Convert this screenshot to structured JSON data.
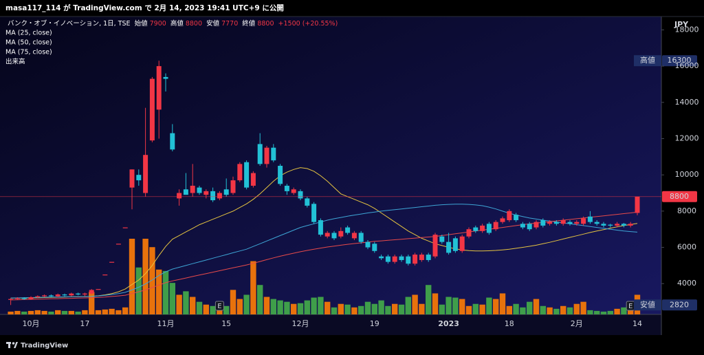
{
  "header": {
    "text": "masa117_114 が TradingView.com で 2月 14, 2023 19:41 UTC+9 に公開"
  },
  "chart_data": {
    "type": "candlestick",
    "symbol": "バンク・オブ・イノベーション, 1日, TSE",
    "legend": {
      "open_label": "始値",
      "open": 7900,
      "high_label": "高値",
      "high": 8800,
      "low_label": "安値",
      "low": 7770,
      "close_label": "終値",
      "close": 8800,
      "change": "+1500 (+20.55%)"
    },
    "categories": [
      null,
      null,
      null,
      "10月",
      null,
      null,
      null,
      null,
      null,
      null,
      null,
      "17",
      null,
      null,
      null,
      null,
      null,
      null,
      null,
      null,
      null,
      null,
      null,
      "11月",
      null,
      null,
      null,
      null,
      null,
      null,
      null,
      null,
      "15",
      null,
      null,
      null,
      null,
      null,
      null,
      null,
      null,
      null,
      null,
      "12月",
      null,
      null,
      null,
      null,
      null,
      null,
      null,
      null,
      null,
      null,
      "19",
      null,
      null,
      null,
      null,
      null,
      null,
      null,
      null,
      null,
      null,
      "2023",
      null,
      null,
      null,
      null,
      null,
      null,
      null,
      null,
      "18",
      null,
      null,
      null,
      null,
      null,
      null,
      null,
      null,
      null,
      "2月",
      null,
      null,
      null,
      null,
      null,
      null,
      null,
      null,
      "14"
    ],
    "open": [
      3100,
      3150,
      3200,
      3150,
      3250,
      3300,
      3350,
      3300,
      3400,
      3350,
      3450,
      3400,
      3450,
      3700,
      4500,
      5200,
      6200,
      7100,
      9300,
      10000,
      9000,
      11900,
      13600,
      15400,
      12300,
      8700,
      9200,
      9000,
      9300,
      8900,
      9100,
      8700,
      9200,
      9000,
      9700,
      10700,
      9400,
      11700,
      10600,
      11500,
      10500,
      9400,
      9000,
      9100,
      8700,
      8400,
      7500,
      6600,
      6800,
      6600,
      7100,
      6500,
      6800,
      6300,
      6200,
      5500,
      5500,
      5200,
      5500,
      5500,
      5100,
      5300,
      5600,
      5500,
      6600,
      6300,
      6500,
      5800,
      6600,
      7100,
      6900,
      7300,
      7000,
      7400,
      7500,
      7800,
      7300,
      7300,
      7100,
      7500,
      7300,
      7400,
      7300,
      7400,
      7300,
      7300,
      7700,
      7400,
      7300,
      7250,
      7200,
      7300,
      7200,
      7900
    ],
    "high": [
      3200,
      3250,
      3250,
      3300,
      3350,
      3400,
      3400,
      3450,
      3450,
      3500,
      3500,
      3500,
      3700,
      3700,
      4500,
      5200,
      6200,
      7100,
      10300,
      10300,
      13700,
      15400,
      16300,
      15600,
      12800,
      9200,
      10100,
      10600,
      9400,
      9200,
      9300,
      9100,
      9800,
      9900,
      10700,
      10800,
      10200,
      12300,
      11600,
      11700,
      10600,
      9500,
      9300,
      9200,
      8800,
      8500,
      7600,
      6900,
      6900,
      7100,
      7200,
      6900,
      6900,
      6400,
      6300,
      5600,
      5600,
      5600,
      5600,
      5600,
      5700,
      5700,
      5700,
      6800,
      6700,
      6800,
      6600,
      6700,
      7100,
      7200,
      7300,
      7400,
      7500,
      7700,
      8100,
      7900,
      7400,
      7400,
      7500,
      7600,
      7500,
      7500,
      7600,
      7500,
      7500,
      7700,
      8000,
      7500,
      7400,
      7300,
      7400,
      7350,
      7400,
      8800
    ],
    "low": [
      2820,
      3100,
      3100,
      3100,
      3200,
      3250,
      3250,
      3250,
      3300,
      3300,
      3350,
      3300,
      3400,
      3700,
      4500,
      5200,
      6200,
      7100,
      8100,
      9400,
      8800,
      11800,
      12000,
      14600,
      11300,
      8300,
      8900,
      8800,
      8900,
      8700,
      8500,
      8600,
      8800,
      8900,
      9600,
      9200,
      9300,
      10500,
      10400,
      10700,
      9400,
      8900,
      8900,
      8600,
      8200,
      7300,
      6600,
      6500,
      6400,
      6500,
      6700,
      6400,
      6200,
      5900,
      5700,
      5300,
      5100,
      5100,
      5200,
      5000,
      5000,
      5200,
      5200,
      5400,
      6200,
      5600,
      5700,
      5700,
      6500,
      6800,
      6800,
      6700,
      6900,
      7300,
      7400,
      7400,
      7000,
      6900,
      7000,
      7100,
      7200,
      7200,
      7200,
      7200,
      7200,
      7200,
      7300,
      7200,
      7100,
      7100,
      7100,
      7100,
      7100,
      7770
    ],
    "close": [
      3150,
      3200,
      3150,
      3250,
      3300,
      3350,
      3300,
      3400,
      3350,
      3450,
      3400,
      3450,
      3650,
      3700,
      4500,
      5200,
      6200,
      7100,
      10300,
      9700,
      11100,
      15300,
      16000,
      15300,
      11400,
      9000,
      8900,
      9400,
      9000,
      9100,
      8600,
      9000,
      8900,
      9700,
      10600,
      9300,
      10100,
      10600,
      11500,
      10800,
      9500,
      9100,
      9200,
      8700,
      8300,
      7400,
      6700,
      6800,
      6500,
      6900,
      6800,
      6800,
      6300,
      6000,
      5800,
      5400,
      5200,
      5500,
      5300,
      5100,
      5600,
      5600,
      5300,
      6700,
      6300,
      5700,
      5800,
      6600,
      7000,
      6900,
      7200,
      6800,
      7400,
      7600,
      8000,
      7500,
      7100,
      7000,
      7400,
      7200,
      7400,
      7300,
      7500,
      7300,
      7400,
      7600,
      7400,
      7300,
      7200,
      7200,
      7300,
      7200,
      7300,
      8800
    ],
    "up_color": "#f23645",
    "down_color": "#22c1d6",
    "volume": {
      "name": "出来高",
      "up_color": "#e8720c",
      "down_color": "#3f9e4a",
      "values": [
        4,
        5,
        4,
        5,
        6,
        5,
        4,
        6,
        5,
        5,
        4,
        6,
        32,
        6,
        7,
        8,
        6,
        10,
        108,
        67,
        108,
        96,
        64,
        62,
        45,
        28,
        33,
        25,
        18,
        14,
        12,
        10,
        12,
        35,
        22,
        28,
        76,
        42,
        25,
        22,
        20,
        18,
        15,
        16,
        20,
        24,
        25,
        18,
        10,
        15,
        14,
        10,
        12,
        18,
        15,
        20,
        12,
        15,
        14,
        25,
        28,
        15,
        42,
        30,
        14,
        25,
        24,
        22,
        12,
        15,
        14,
        24,
        22,
        30,
        12,
        15,
        10,
        18,
        22,
        12,
        10,
        8,
        12,
        10,
        15,
        18,
        6,
        5,
        4,
        5,
        8,
        10,
        14,
        28
      ]
    },
    "moving_averages": [
      {
        "name": "MA (25, close)",
        "color": "#e6c440",
        "values": [
          3200,
          3200,
          3200,
          3210,
          3220,
          3230,
          3240,
          3250,
          3260,
          3270,
          3280,
          3290,
          3300,
          3330,
          3380,
          3450,
          3550,
          3700,
          3950,
          4200,
          4550,
          5000,
          5550,
          6050,
          6450,
          6650,
          6850,
          7050,
          7250,
          7400,
          7550,
          7700,
          7850,
          8000,
          8200,
          8400,
          8650,
          8950,
          9300,
          9650,
          9950,
          10150,
          10300,
          10400,
          10350,
          10200,
          9950,
          9650,
          9300,
          8950,
          8800,
          8650,
          8500,
          8350,
          8150,
          7900,
          7650,
          7400,
          7150,
          6900,
          6700,
          6500,
          6350,
          6200,
          6100,
          6000,
          5920,
          5860,
          5820,
          5800,
          5800,
          5810,
          5830,
          5860,
          5900,
          5950,
          6000,
          6060,
          6120,
          6200,
          6280,
          6370,
          6460,
          6550,
          6640,
          6730,
          6820,
          6900,
          6980,
          7060,
          7130,
          7200,
          7260,
          7320
        ]
      },
      {
        "name": "MA (50, close)",
        "color": "#3ea6d6",
        "values": [
          3200,
          3210,
          3220,
          3230,
          3240,
          3250,
          3255,
          3260,
          3270,
          3275,
          3280,
          3285,
          3290,
          3320,
          3350,
          3400,
          3450,
          3520,
          3650,
          3800,
          3980,
          4200,
          4450,
          4650,
          4800,
          4900,
          5000,
          5100,
          5200,
          5300,
          5400,
          5500,
          5600,
          5700,
          5800,
          5900,
          6050,
          6200,
          6350,
          6500,
          6650,
          6800,
          6950,
          7100,
          7200,
          7300,
          7400,
          7500,
          7580,
          7650,
          7720,
          7780,
          7840,
          7900,
          7950,
          8000,
          8040,
          8080,
          8120,
          8160,
          8200,
          8240,
          8280,
          8320,
          8350,
          8370,
          8380,
          8380,
          8370,
          8340,
          8300,
          8220,
          8120,
          8000,
          7880,
          7780,
          7700,
          7620,
          7560,
          7500,
          7450,
          7400,
          7350,
          7300,
          7250,
          7200,
          7150,
          7100,
          7050,
          7000,
          6950,
          6900,
          6870,
          6840
        ]
      },
      {
        "name": "MA (75, close)",
        "color": "#e84a4a",
        "values": [
          3100,
          3110,
          3120,
          3130,
          3140,
          3150,
          3160,
          3170,
          3180,
          3190,
          3200,
          3210,
          3220,
          3240,
          3260,
          3290,
          3320,
          3360,
          3450,
          3550,
          3650,
          3780,
          3920,
          4050,
          4150,
          4230,
          4310,
          4390,
          4470,
          4550,
          4630,
          4710,
          4790,
          4870,
          4950,
          5030,
          5120,
          5220,
          5320,
          5420,
          5510,
          5600,
          5680,
          5760,
          5830,
          5900,
          5960,
          6020,
          6070,
          6120,
          6170,
          6210,
          6250,
          6290,
          6330,
          6360,
          6390,
          6420,
          6450,
          6480,
          6510,
          6540,
          6570,
          6600,
          6650,
          6700,
          6750,
          6800,
          6850,
          6900,
          6950,
          7000,
          7050,
          7100,
          7150,
          7200,
          7250,
          7300,
          7340,
          7380,
          7420,
          7460,
          7500,
          7540,
          7580,
          7620,
          7660,
          7700,
          7740,
          7780,
          7820,
          7860,
          7900,
          7950
        ]
      }
    ],
    "currency": "JPY",
    "ylim": [
      2300,
      18700
    ],
    "yticks": [
      4000,
      6000,
      8000,
      10000,
      12000,
      14000,
      16000,
      18000
    ],
    "price_labels": [
      {
        "label": "高値",
        "value": 16300,
        "color": "#1f2f66"
      },
      {
        "value": 8800,
        "color": "#f23645",
        "line": true
      },
      {
        "label": "安値",
        "value": 2820,
        "color": "#1f2f66"
      }
    ],
    "events": [
      {
        "label": "E",
        "index": 31
      },
      {
        "label": "E",
        "index": 92
      }
    ]
  },
  "footer": {
    "brand": "TradingView"
  }
}
